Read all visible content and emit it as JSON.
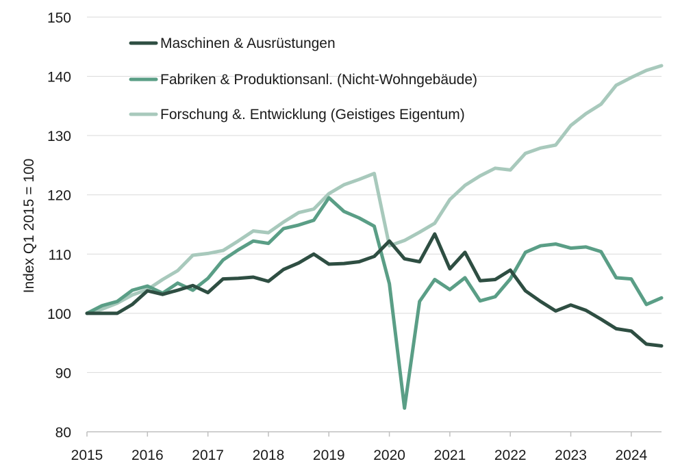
{
  "chart_data": {
    "type": "line",
    "title": "",
    "xlabel": "",
    "ylabel": "Index Q1 2015 = 100",
    "ylim": [
      80,
      150
    ],
    "yticks": [
      80,
      90,
      100,
      110,
      120,
      130,
      140,
      150
    ],
    "xlim": [
      2015.0,
      2024.5
    ],
    "xticks": [
      "2015",
      "2016",
      "2017",
      "2018",
      "2019",
      "2020",
      "2021",
      "2022",
      "2023",
      "2024"
    ],
    "grid": "horizontal",
    "legend_position": "top-left",
    "x": [
      2015.0,
      2015.25,
      2015.5,
      2015.75,
      2016.0,
      2016.25,
      2016.5,
      2016.75,
      2017.0,
      2017.25,
      2017.5,
      2017.75,
      2018.0,
      2018.25,
      2018.5,
      2018.75,
      2019.0,
      2019.25,
      2019.5,
      2019.75,
      2020.0,
      2020.25,
      2020.5,
      2020.75,
      2021.0,
      2021.25,
      2021.5,
      2021.75,
      2022.0,
      2022.25,
      2022.5,
      2022.75,
      2023.0,
      2023.25,
      2023.5,
      2023.75,
      2024.0,
      2024.25,
      2024.5
    ],
    "series": [
      {
        "name": "Maschinen & Ausrüstungen",
        "color": "#2e4e42",
        "values": [
          100,
          100,
          100,
          101.5,
          103.8,
          103.2,
          103.9,
          104.7,
          103.5,
          105.8,
          105.9,
          106.1,
          105.4,
          107.4,
          108.5,
          110.0,
          108.3,
          108.4,
          108.7,
          109.6,
          112.2,
          109.2,
          108.7,
          113.4,
          107.5,
          110.3,
          105.5,
          105.7,
          107.3,
          103.8,
          102.0,
          100.4,
          101.4,
          100.5,
          99.0,
          97.4,
          97.0,
          94.8,
          94.5
        ]
      },
      {
        "name": "Fabriken & Produktionsanl. (Nicht-Wohngebäude)",
        "color": "#5a9e86",
        "values": [
          100,
          101.3,
          102.0,
          103.9,
          104.6,
          103.4,
          105.1,
          103.9,
          105.9,
          109.0,
          110.7,
          112.2,
          111.8,
          114.3,
          114.9,
          115.7,
          119.5,
          117.2,
          116.1,
          114.7,
          105.0,
          84.0,
          102.0,
          105.7,
          104.0,
          106.0,
          102.1,
          102.8,
          105.8,
          110.3,
          111.4,
          111.7,
          111.0,
          111.2,
          110.4,
          106.0,
          105.8,
          101.5,
          102.6
        ]
      },
      {
        "name": "Forschung &. Entwicklung (Geistiges Eigentum)",
        "color": "#a8c9bc",
        "values": [
          100,
          100.7,
          101.7,
          103.1,
          104.0,
          105.7,
          107.2,
          109.8,
          110.1,
          110.6,
          112.2,
          113.9,
          113.6,
          115.4,
          117.0,
          117.6,
          120.2,
          121.7,
          122.6,
          123.6,
          111.4,
          112.3,
          113.7,
          115.2,
          119.2,
          121.6,
          123.2,
          124.5,
          124.2,
          127.0,
          127.9,
          128.4,
          131.7,
          133.7,
          135.3,
          138.5,
          139.8,
          141.0,
          141.8
        ]
      }
    ]
  }
}
